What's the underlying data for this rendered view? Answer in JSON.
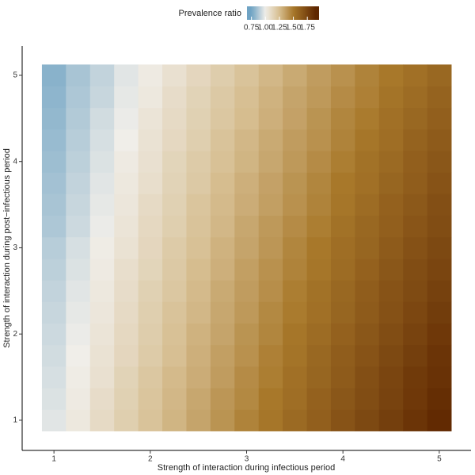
{
  "chart_data": {
    "type": "heatmap",
    "x_label": "Strength of interaction during infectious period",
    "y_label": "Strength of interaction during post−infectious period",
    "legend_title": "Prevalence ratio",
    "x": [
      1,
      1.25,
      1.5,
      1.75,
      2,
      2.25,
      2.5,
      2.75,
      3,
      3.25,
      3.5,
      3.75,
      4,
      4.25,
      4.5,
      4.75,
      5
    ],
    "y": [
      1,
      1.25,
      1.5,
      1.75,
      2,
      2.25,
      2.5,
      2.75,
      3,
      3.25,
      3.5,
      3.75,
      4,
      4.25,
      4.5,
      4.75,
      5
    ],
    "z": [
      [
        0.97,
        1.03,
        1.1,
        1.16,
        1.22,
        1.28,
        1.34,
        1.4,
        1.46,
        1.51,
        1.57,
        1.62,
        1.68,
        1.73,
        1.78,
        1.83,
        1.88
      ],
      [
        0.96,
        1.02,
        1.09,
        1.15,
        1.21,
        1.27,
        1.33,
        1.39,
        1.44,
        1.5,
        1.55,
        1.61,
        1.66,
        1.71,
        1.76,
        1.81,
        1.86
      ],
      [
        0.95,
        1.01,
        1.07,
        1.14,
        1.2,
        1.26,
        1.31,
        1.37,
        1.43,
        1.48,
        1.54,
        1.59,
        1.64,
        1.7,
        1.75,
        1.8,
        1.84
      ],
      [
        0.94,
        1.0,
        1.06,
        1.12,
        1.18,
        1.24,
        1.3,
        1.36,
        1.41,
        1.47,
        1.52,
        1.58,
        1.63,
        1.68,
        1.73,
        1.78,
        1.83
      ],
      [
        0.93,
        0.99,
        1.05,
        1.11,
        1.17,
        1.23,
        1.29,
        1.34,
        1.4,
        1.45,
        1.51,
        1.56,
        1.61,
        1.66,
        1.71,
        1.76,
        1.81
      ],
      [
        0.92,
        0.98,
        1.04,
        1.1,
        1.16,
        1.22,
        1.27,
        1.33,
        1.38,
        1.44,
        1.49,
        1.54,
        1.59,
        1.64,
        1.69,
        1.74,
        1.79
      ],
      [
        0.91,
        0.97,
        1.03,
        1.09,
        1.15,
        1.2,
        1.26,
        1.32,
        1.37,
        1.42,
        1.48,
        1.53,
        1.58,
        1.63,
        1.68,
        1.72,
        1.77
      ],
      [
        0.9,
        0.96,
        1.02,
        1.08,
        1.13,
        1.19,
        1.25,
        1.3,
        1.36,
        1.41,
        1.46,
        1.51,
        1.56,
        1.61,
        1.66,
        1.71,
        1.75
      ],
      [
        0.89,
        0.95,
        1.01,
        1.06,
        1.12,
        1.18,
        1.23,
        1.29,
        1.34,
        1.39,
        1.45,
        1.5,
        1.55,
        1.59,
        1.64,
        1.69,
        1.73
      ],
      [
        0.87,
        0.93,
        0.99,
        1.05,
        1.11,
        1.16,
        1.22,
        1.27,
        1.33,
        1.38,
        1.43,
        1.48,
        1.53,
        1.58,
        1.62,
        1.67,
        1.71
      ],
      [
        0.86,
        0.92,
        0.98,
        1.04,
        1.1,
        1.15,
        1.21,
        1.26,
        1.31,
        1.36,
        1.41,
        1.46,
        1.51,
        1.56,
        1.61,
        1.65,
        1.7
      ],
      [
        0.85,
        0.91,
        0.97,
        1.03,
        1.08,
        1.14,
        1.19,
        1.25,
        1.3,
        1.35,
        1.4,
        1.45,
        1.5,
        1.54,
        1.59,
        1.63,
        1.68
      ],
      [
        0.84,
        0.9,
        0.96,
        1.02,
        1.07,
        1.13,
        1.18,
        1.23,
        1.28,
        1.33,
        1.38,
        1.43,
        1.48,
        1.53,
        1.57,
        1.62,
        1.66
      ],
      [
        0.83,
        0.89,
        0.95,
        1.0,
        1.06,
        1.11,
        1.16,
        1.22,
        1.27,
        1.32,
        1.37,
        1.41,
        1.46,
        1.51,
        1.55,
        1.6,
        1.64
      ],
      [
        0.82,
        0.88,
        0.94,
        0.99,
        1.05,
        1.1,
        1.15,
        1.2,
        1.25,
        1.3,
        1.35,
        1.4,
        1.45,
        1.49,
        1.54,
        1.58,
        1.62
      ],
      [
        0.81,
        0.87,
        0.92,
        0.98,
        1.03,
        1.09,
        1.14,
        1.19,
        1.24,
        1.29,
        1.34,
        1.38,
        1.43,
        1.47,
        1.52,
        1.56,
        1.6
      ],
      [
        0.8,
        0.86,
        0.91,
        0.97,
        1.02,
        1.07,
        1.12,
        1.17,
        1.22,
        1.27,
        1.32,
        1.37,
        1.41,
        1.46,
        1.5,
        1.54,
        1.58
      ]
    ],
    "xlim": [
      0.67,
      5.33
    ],
    "ylim": [
      0.65,
      5.34
    ],
    "xticks": [
      1,
      2,
      3,
      4,
      5
    ],
    "yticks": [
      1,
      2,
      3,
      4,
      5
    ],
    "legend_lim": [
      0.67,
      1.96
    ],
    "legend_ticks": [
      0.75,
      {
        "value": 1.0,
        "label": "1.00"
      },
      1.25,
      {
        "value": 1.5,
        "label": "1.50"
      },
      1.75
    ],
    "colorscale": [
      [
        0.75,
        "#6fa3c4"
      ],
      [
        1.0,
        "#f0eee9"
      ],
      [
        1.25,
        "#d6bd8f"
      ],
      [
        1.5,
        "#a8782a"
      ],
      [
        1.9,
        "#5e2600"
      ]
    ]
  }
}
